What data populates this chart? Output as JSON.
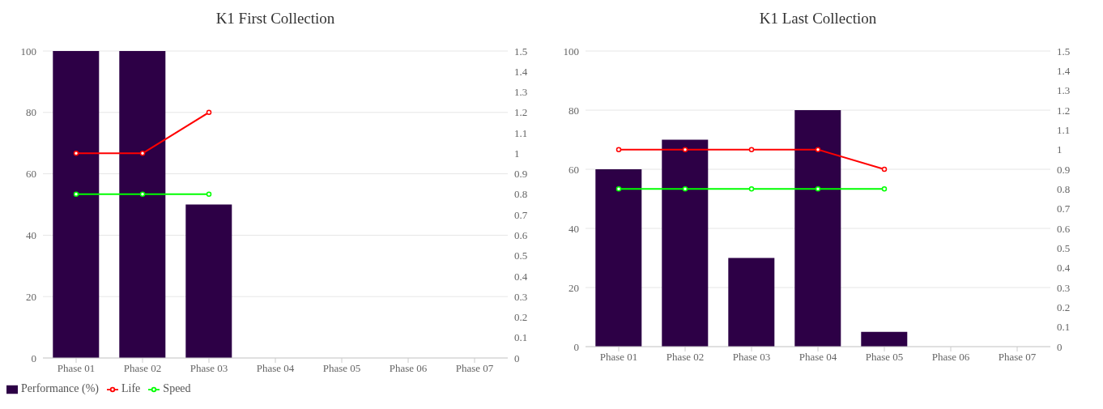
{
  "chart_data": [
    {
      "type": "bar",
      "title": "K1 First Collection",
      "categories": [
        "Phase 01",
        "Phase 02",
        "Phase 03",
        "Phase 04",
        "Phase 05",
        "Phase 06",
        "Phase 07"
      ],
      "series": [
        {
          "name": "Performance (%)",
          "color": "#2d0046",
          "values": [
            100,
            100,
            50,
            null,
            null,
            null,
            null
          ]
        },
        {
          "name": "Life",
          "type": "line",
          "axis": "y2",
          "color": "#ff0000",
          "values": [
            1,
            1,
            1.2,
            null,
            null,
            null,
            null
          ]
        },
        {
          "name": "Speed",
          "type": "line",
          "axis": "y2",
          "color": "#00ff00",
          "values": [
            0.8,
            0.8,
            0.8,
            null,
            null,
            null,
            null
          ]
        }
      ],
      "ylim": [
        0,
        100
      ],
      "yticks": [
        0,
        20,
        40,
        60,
        80,
        100
      ],
      "y2lim": [
        0,
        1.5
      ],
      "y2ticks": [
        0,
        0.1,
        0.2,
        0.3,
        0.4,
        0.5,
        0.6,
        0.7,
        0.8,
        0.9,
        1,
        1.1,
        1.2,
        1.3,
        1.4,
        1.5
      ],
      "grid": "y",
      "legend": "bottom left",
      "marker": "circle"
    },
    {
      "type": "bar",
      "title": "K1 Last Collection",
      "categories": [
        "Phase 01",
        "Phase 02",
        "Phase 03",
        "Phase 04",
        "Phase 05",
        "Phase 06",
        "Phase 07"
      ],
      "series": [
        {
          "color": "#2d0046",
          "values": [
            60,
            70,
            30,
            80,
            5,
            null,
            null
          ]
        },
        {
          "type": "line",
          "axis": "y2",
          "color": "#ff0000",
          "values": [
            1,
            1,
            1,
            1,
            0.9,
            null,
            null
          ]
        },
        {
          "type": "line",
          "axis": "y2",
          "color": "#00ff00",
          "values": [
            0.8,
            0.8,
            0.8,
            0.8,
            0.8,
            null,
            null
          ]
        }
      ],
      "ylim": [
        0,
        100
      ],
      "yticks": [
        0,
        20,
        40,
        60,
        80,
        100
      ],
      "y2lim": [
        0,
        1.5
      ],
      "y2ticks": [
        0,
        0.1,
        0.2,
        0.3,
        0.4,
        0.5,
        0.6,
        0.7,
        0.8,
        0.9,
        1,
        1.1,
        1.2,
        1.3,
        1.4,
        1.5
      ],
      "grid": "y",
      "marker": "circle"
    }
  ]
}
